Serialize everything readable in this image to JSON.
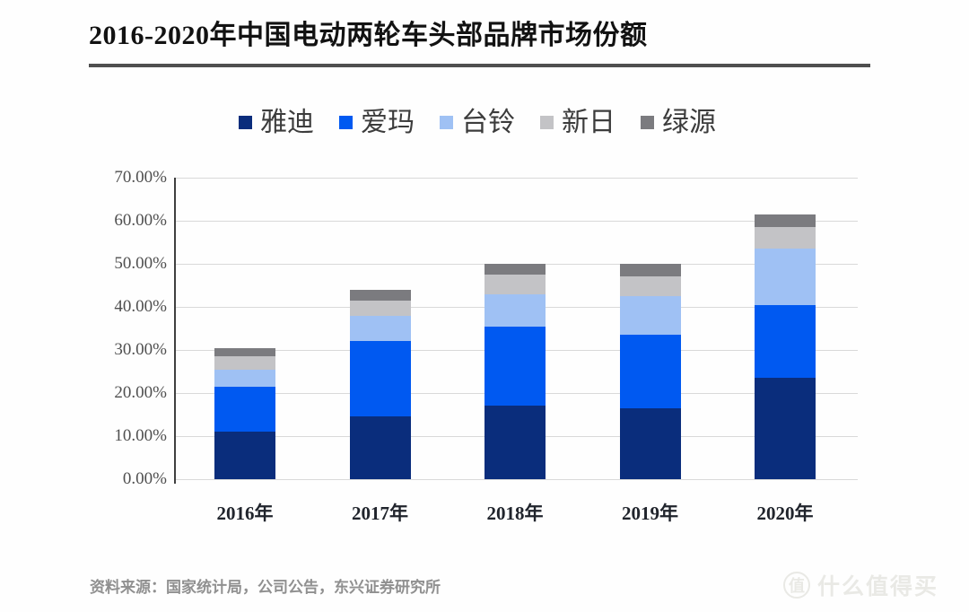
{
  "title": "2016-2020年中国电动两轮车头部品牌市场份额",
  "source": "资料来源：国家统计局，公司公告，东兴证券研究所",
  "watermark": {
    "logo": "值",
    "text": "什么值得买"
  },
  "chart_data": {
    "type": "bar",
    "stacked": true,
    "title": "2016-2020年中国电动两轮车头部品牌市场份额",
    "categories": [
      "2016年",
      "2017年",
      "2018年",
      "2019年",
      "2020年"
    ],
    "series": [
      {
        "name": "雅迪",
        "color": "#0a2d7c",
        "values": [
          11.0,
          14.5,
          17.0,
          16.5,
          23.5
        ]
      },
      {
        "name": "爱玛",
        "color": "#0059f1",
        "values": [
          10.5,
          17.5,
          18.5,
          17.0,
          17.0
        ]
      },
      {
        "name": "台铃",
        "color": "#9fc1f4",
        "values": [
          4.0,
          6.0,
          7.5,
          9.0,
          13.0
        ]
      },
      {
        "name": "新日",
        "color": "#c3c3c6",
        "values": [
          3.0,
          3.5,
          4.5,
          4.5,
          5.0
        ]
      },
      {
        "name": "绿源",
        "color": "#7b7b7f",
        "values": [
          2.0,
          2.5,
          2.5,
          3.0,
          3.0
        ]
      }
    ],
    "totals": [
      30.5,
      44.0,
      50.0,
      50.0,
      61.5
    ],
    "xlabel": "",
    "ylabel": "",
    "ylim": [
      0,
      70
    ],
    "yticks": [
      "0.00%",
      "10.00%",
      "20.00%",
      "30.00%",
      "40.00%",
      "50.00%",
      "60.00%",
      "70.00%"
    ],
    "grid": true,
    "legend_position": "top"
  }
}
